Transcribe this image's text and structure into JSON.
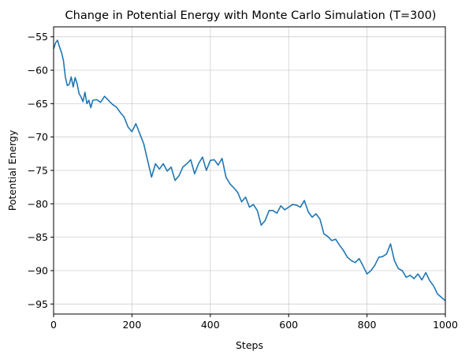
{
  "chart_data": {
    "type": "line",
    "title": "Change in Potential Energy with Monte Carlo Simulation (T=300)",
    "xlabel": "Steps",
    "ylabel": "Potential Energy",
    "xlim": [
      0,
      1000
    ],
    "ylim": [
      -96.5,
      -53.5
    ],
    "xticks": [
      0,
      200,
      400,
      600,
      800,
      1000
    ],
    "xtick_labels": [
      "0",
      "200",
      "400",
      "600",
      "800",
      "1000"
    ],
    "yticks": [
      -55,
      -60,
      -65,
      -70,
      -75,
      -80,
      -85,
      -90,
      -95
    ],
    "ytick_labels": [
      "−55",
      "−60",
      "−65",
      "−70",
      "−75",
      "−80",
      "−85",
      "−90",
      "−95"
    ],
    "grid": true,
    "series": [
      {
        "color": "#1f77b4",
        "x": [
          0,
          5,
          10,
          15,
          20,
          25,
          30,
          35,
          40,
          45,
          50,
          55,
          60,
          65,
          70,
          75,
          80,
          85,
          90,
          95,
          100,
          110,
          120,
          130,
          140,
          150,
          160,
          170,
          180,
          190,
          200,
          210,
          220,
          230,
          240,
          250,
          260,
          270,
          280,
          290,
          300,
          310,
          320,
          330,
          340,
          350,
          360,
          370,
          380,
          390,
          400,
          410,
          420,
          430,
          440,
          450,
          460,
          470,
          480,
          490,
          500,
          510,
          520,
          530,
          540,
          550,
          560,
          570,
          580,
          590,
          600,
          610,
          620,
          630,
          640,
          650,
          660,
          670,
          680,
          690,
          700,
          710,
          720,
          730,
          740,
          750,
          760,
          770,
          780,
          790,
          800,
          810,
          820,
          830,
          840,
          850,
          860,
          870,
          880,
          890,
          900,
          910,
          920,
          930,
          940,
          950,
          960,
          970,
          980,
          990,
          1000
        ],
        "values": [
          -56.8,
          -55.9,
          -55.5,
          -56.5,
          -57.3,
          -58.5,
          -61.0,
          -62.3,
          -62.1,
          -61.0,
          -62.5,
          -61.1,
          -62.0,
          -63.5,
          -64.0,
          -64.7,
          -63.3,
          -65.0,
          -64.5,
          -65.6,
          -64.5,
          -64.4,
          -64.8,
          -63.9,
          -64.5,
          -65.1,
          -65.5,
          -66.3,
          -67.0,
          -68.5,
          -69.2,
          -68.0,
          -69.5,
          -71.0,
          -73.5,
          -76.0,
          -74.0,
          -74.8,
          -74.0,
          -75.1,
          -74.5,
          -76.5,
          -75.8,
          -74.5,
          -74.0,
          -73.4,
          -75.5,
          -74.0,
          -73.0,
          -75.0,
          -73.5,
          -73.4,
          -74.2,
          -73.2,
          -76.0,
          -77.0,
          -77.6,
          -78.3,
          -79.7,
          -79.0,
          -80.5,
          -80.1,
          -81.0,
          -83.2,
          -82.5,
          -81.0,
          -81.0,
          -81.4,
          -80.3,
          -80.9,
          -80.5,
          -80.1,
          -80.2,
          -80.5,
          -79.5,
          -81.2,
          -82.0,
          -81.5,
          -82.3,
          -84.5,
          -84.9,
          -85.5,
          -85.3,
          -86.2,
          -87.0,
          -88.0,
          -88.5,
          -88.8,
          -88.2,
          -89.3,
          -90.5,
          -90.0,
          -89.2,
          -88.0,
          -87.9,
          -87.5,
          -86.0,
          -88.5,
          -89.7,
          -90.0,
          -91.0,
          -90.7,
          -91.2,
          -90.5,
          -91.4,
          -90.3,
          -91.5,
          -92.3,
          -93.5,
          -94.0,
          -94.5
        ]
      }
    ]
  }
}
